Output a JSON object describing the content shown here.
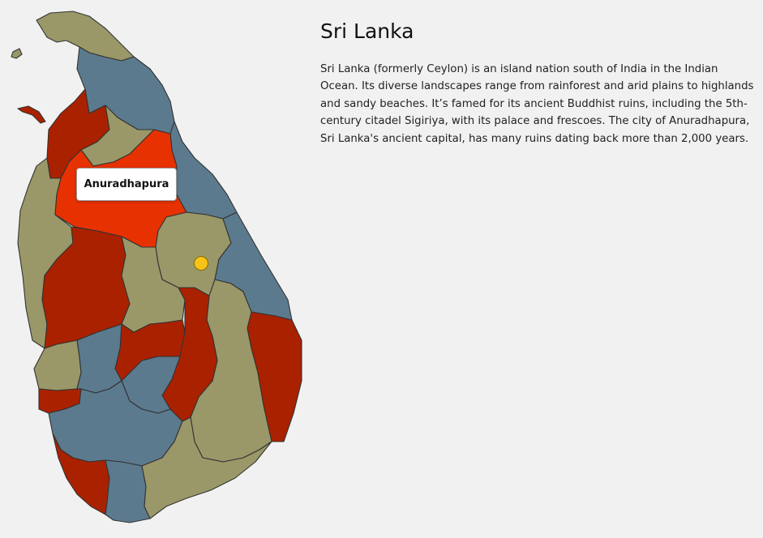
{
  "map": {
    "tooltip_label": "Anuradhapura",
    "colors": {
      "olive": "#9a9868",
      "slate": "#5b7a8e",
      "dark_red": "#aa2100",
      "selected": "#e83100",
      "marker": "#f7c318"
    }
  },
  "info": {
    "title": "Sri Lanka",
    "description": "Sri Lanka (formerly Ceylon) is an island nation south of India in the Indian Ocean. Its diverse landscapes range from rainforest and arid plains to highlands and sandy beaches. It’s famed for its ancient Buddhist ruins, including the 5th-century citadel Sigiriya, with its palace and frescoes. The city of Anuradhapura, Sri Lanka's ancient capital, has many ruins dating back more than 2,000 years."
  }
}
